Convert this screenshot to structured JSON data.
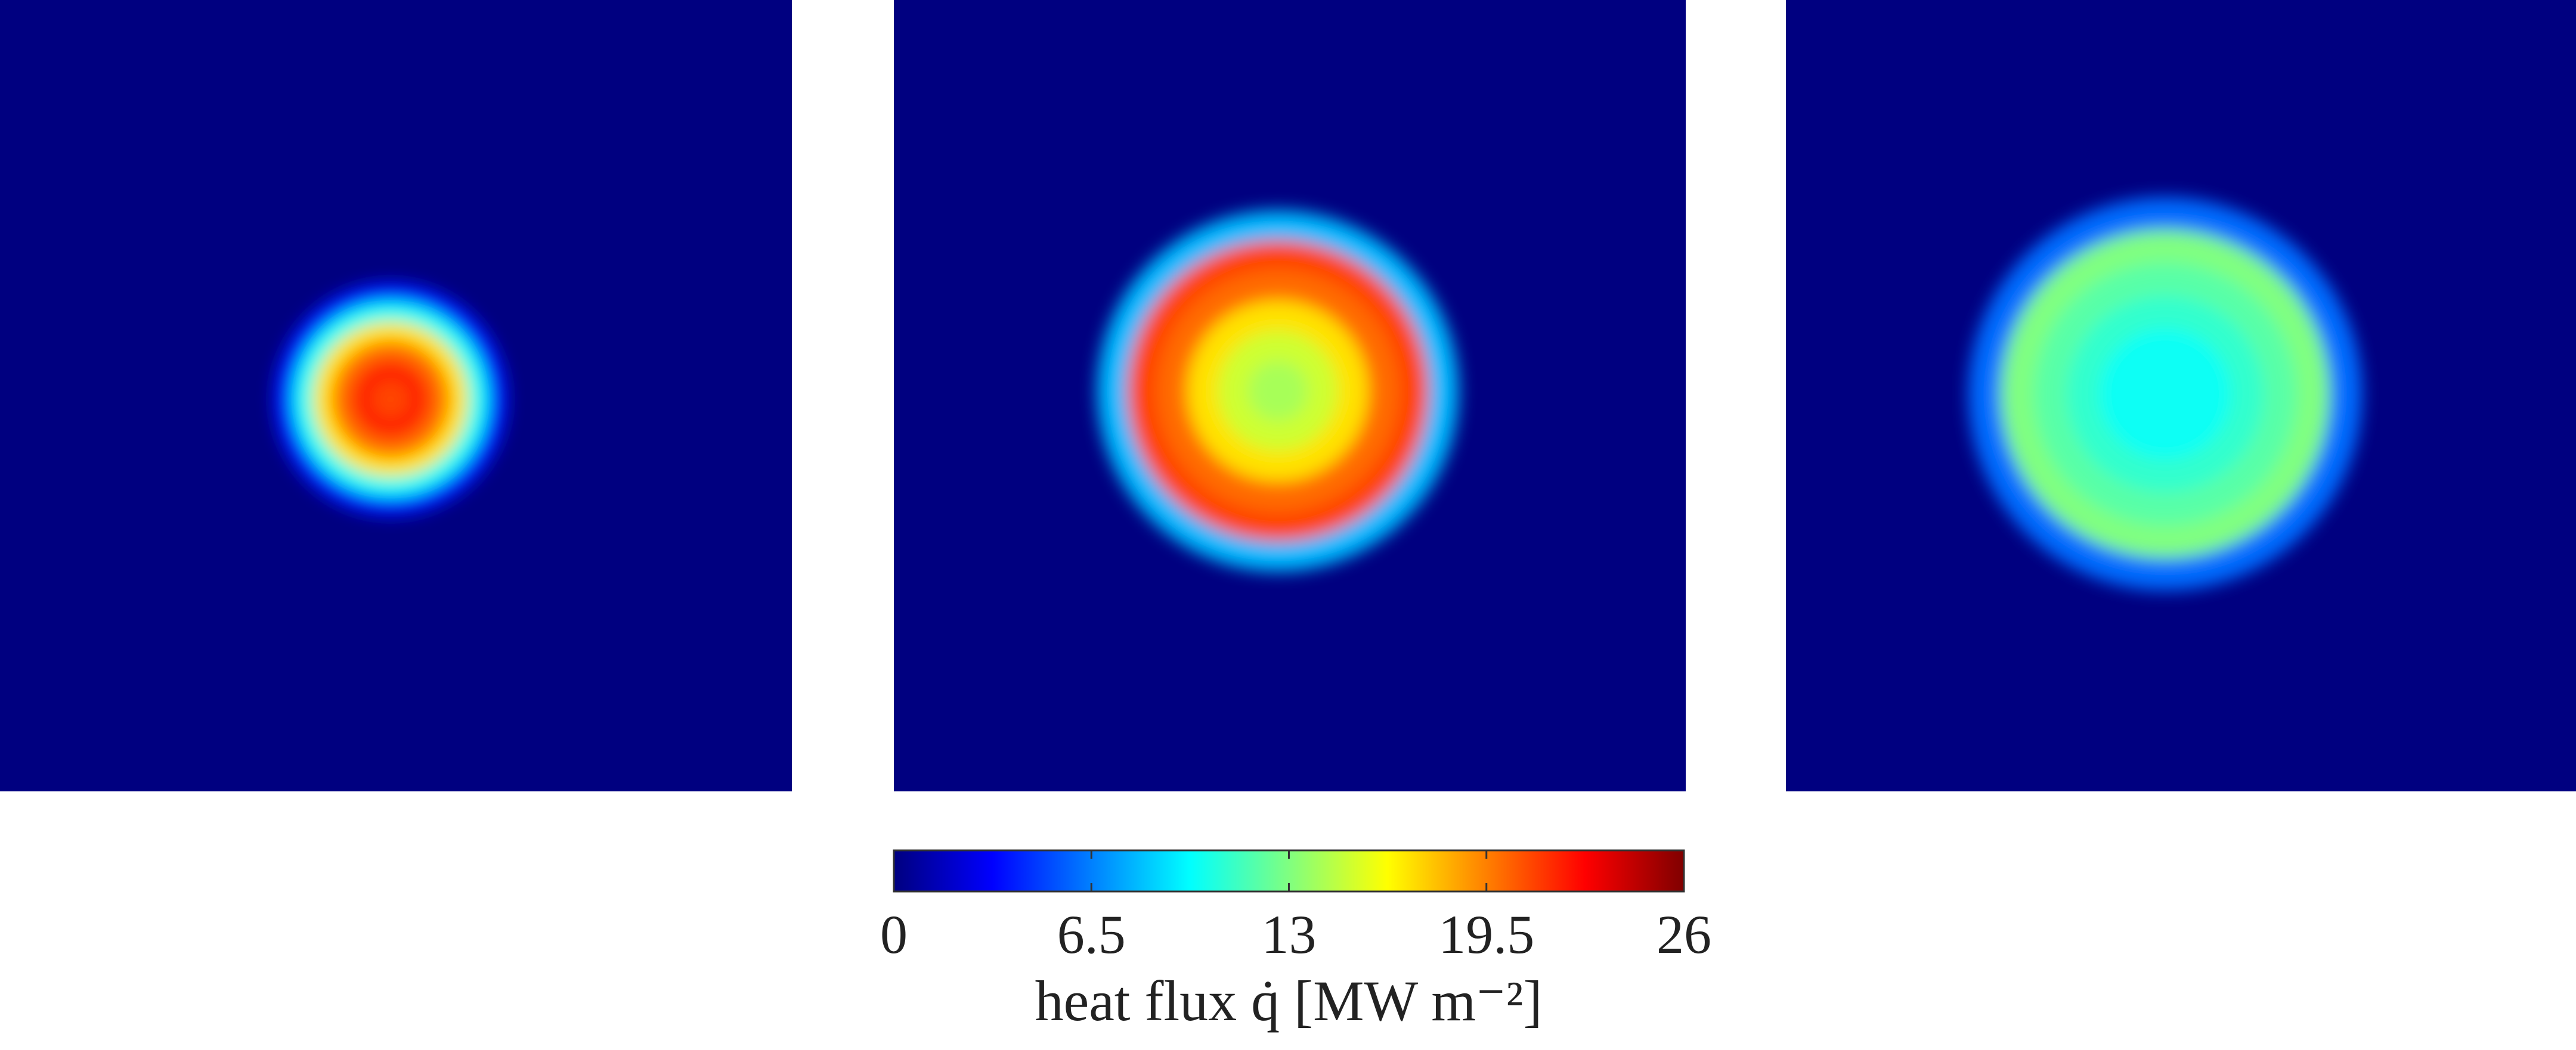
{
  "chart_data": {
    "type": "heatmap",
    "colormap": "jet",
    "panels": [
      {
        "values": [
          21,
          22,
          20,
          17,
          10,
          4
        ]
      },
      {
        "values": [
          14,
          15,
          17,
          20,
          21,
          8
        ]
      },
      {
        "values": [
          10,
          10,
          11,
          12,
          13,
          6
        ]
      }
    ],
    "colorbar": {
      "label": "heat flux q̇ [MW m⁻²]",
      "lim": [
        0,
        26
      ],
      "ticks": [
        0,
        6.5,
        13,
        19.5,
        26
      ]
    }
  }
}
